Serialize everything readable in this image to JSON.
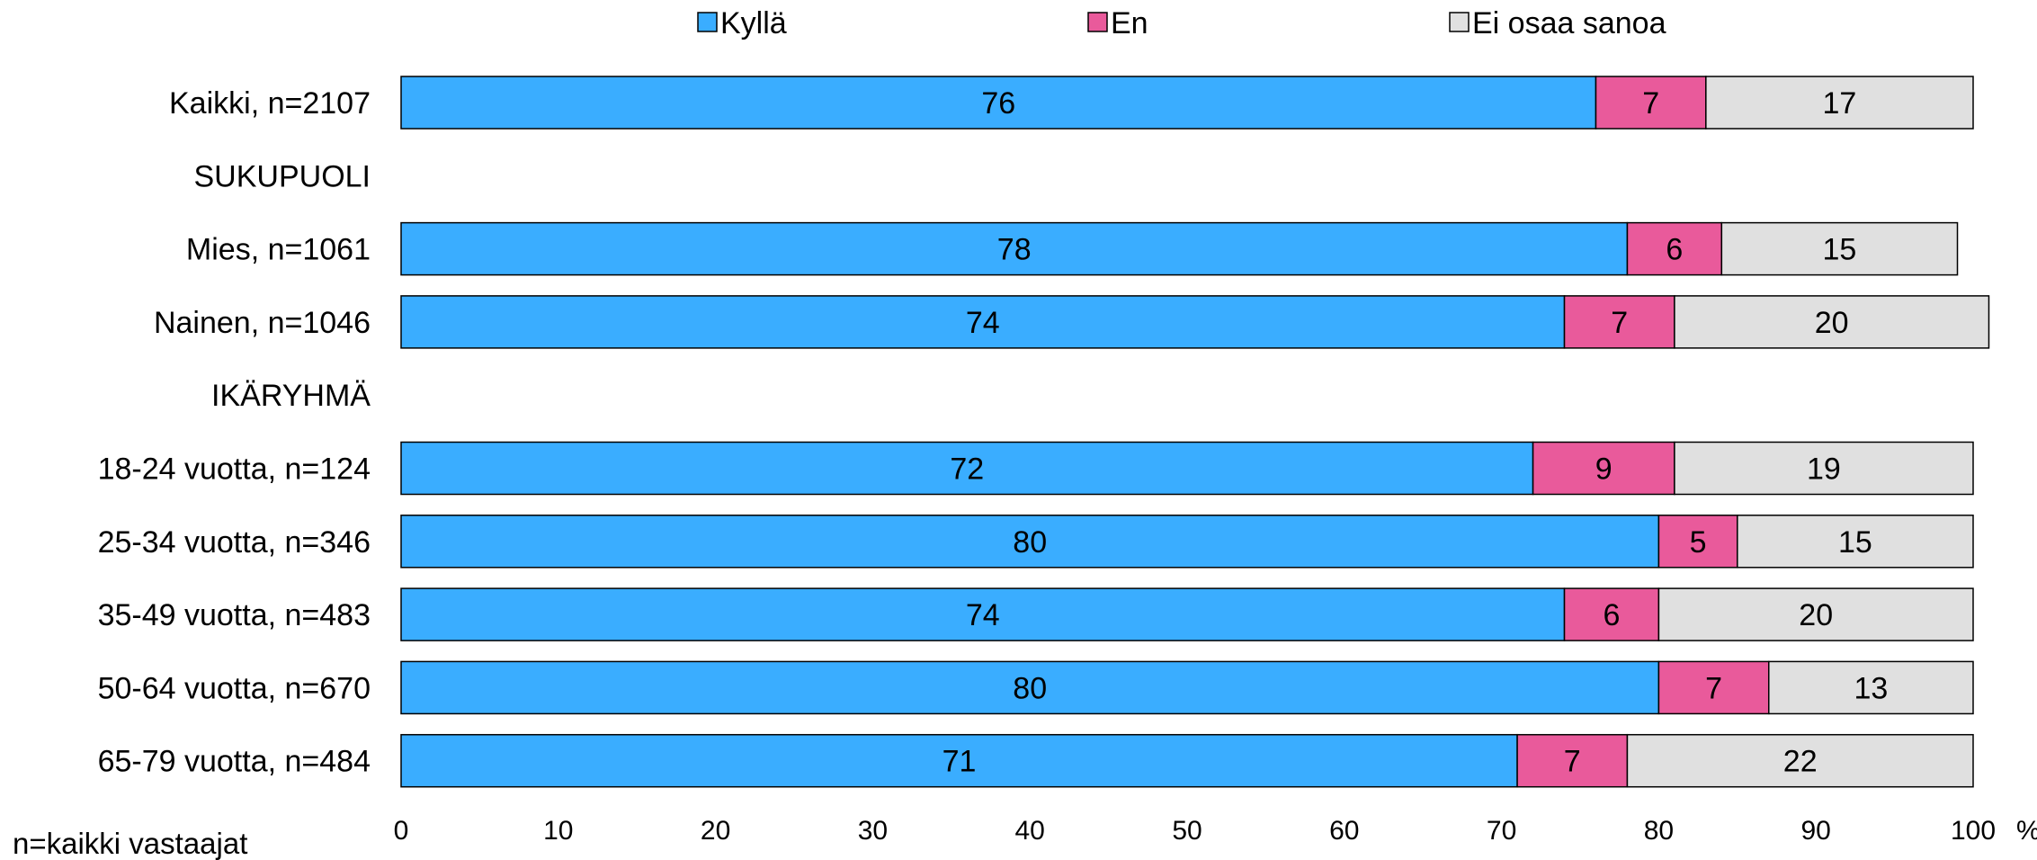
{
  "chart_data": {
    "type": "bar",
    "orientation": "horizontal",
    "stacked": true,
    "legend_position": "top",
    "categories": [
      "Kaikki, n=2107",
      "SUKUPUOLI",
      "Mies, n=1061",
      "Nainen, n=1046",
      "IKÄRYHMÄ",
      "18-24 vuotta, n=124",
      "25-34 vuotta, n=346",
      "35-49 vuotta, n=483",
      "50-64 vuotta, n=670",
      "65-79 vuotta, n=484"
    ],
    "series": [
      {
        "name": "Kyllä",
        "color": "#3aadff",
        "values": [
          76,
          null,
          78,
          74,
          null,
          72,
          80,
          74,
          80,
          71
        ]
      },
      {
        "name": "En",
        "color": "#e95a9b",
        "values": [
          7,
          null,
          6,
          7,
          null,
          9,
          5,
          6,
          7,
          7
        ]
      },
      {
        "name": "Ei osaa sanoa",
        "color": "#e0e0e0",
        "values": [
          17,
          null,
          15,
          20,
          null,
          19,
          15,
          20,
          13,
          22
        ]
      }
    ],
    "xlim": [
      0,
      100
    ],
    "xticks": [
      0,
      10,
      20,
      30,
      40,
      50,
      60,
      70,
      80,
      90,
      100
    ],
    "xunit": "%",
    "grid": false,
    "footnote": "n=kaikki vastaajat"
  }
}
